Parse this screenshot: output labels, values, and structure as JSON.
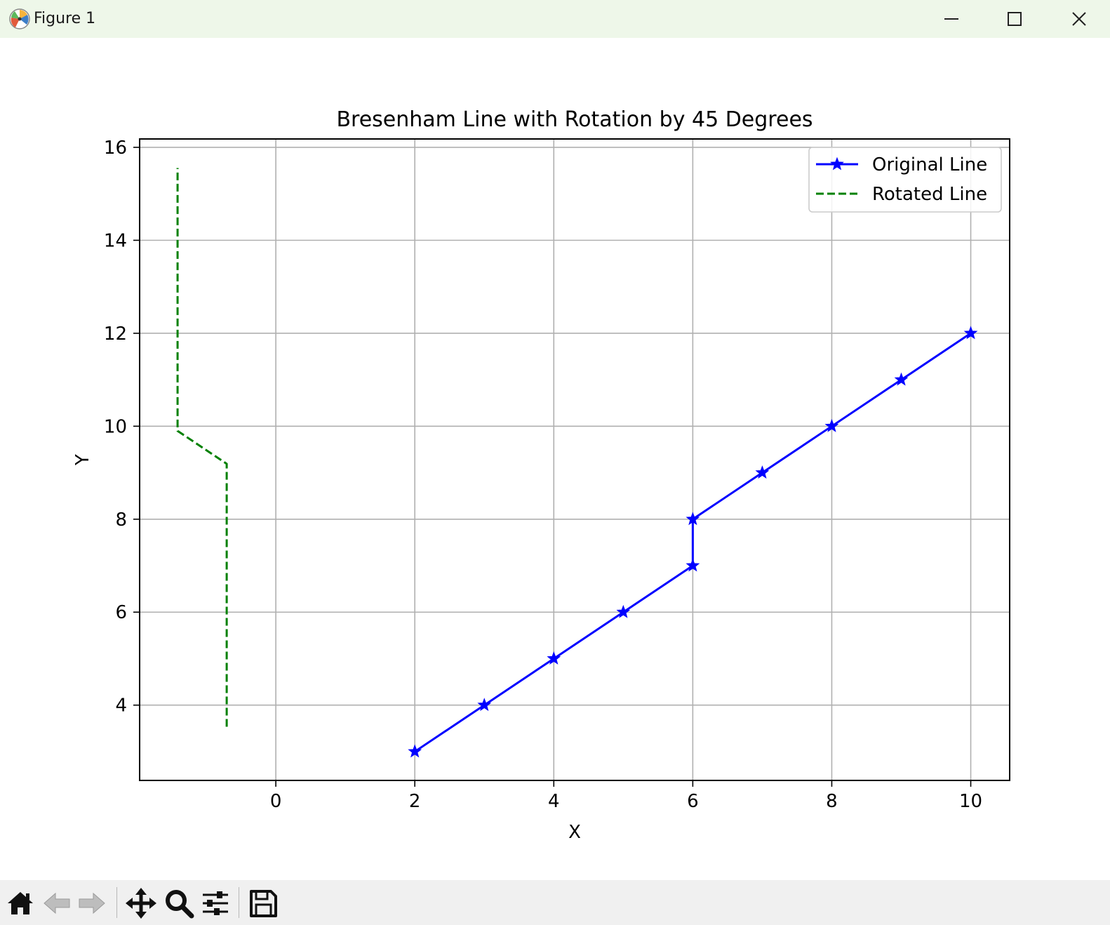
{
  "window": {
    "title": "Figure 1",
    "icons": [
      "matplotlib-logo-icon",
      "minimize-icon",
      "maximize-icon",
      "close-icon"
    ]
  },
  "toolbar": {
    "tools": [
      "home-icon",
      "back-arrow-icon",
      "forward-arrow-icon",
      "pan-move-icon",
      "zoom-magnifier-icon",
      "configure-subplots-icon",
      "save-floppy-icon"
    ]
  },
  "chart_data": {
    "type": "line",
    "title": "Bresenham Line with Rotation by 45 Degrees",
    "xlabel": "X",
    "ylabel": "Y",
    "xlim": [
      -1.96,
      10.56
    ],
    "ylim": [
      2.38,
      16.18
    ],
    "xticks": [
      0,
      2,
      4,
      6,
      8,
      10
    ],
    "yticks": [
      4,
      6,
      8,
      10,
      12,
      14,
      16
    ],
    "grid": true,
    "legend": "upper right",
    "series": [
      {
        "name": "Original Line",
        "color": "#0000ff",
        "style": "solid",
        "marker": "star",
        "x": [
          2,
          3,
          4,
          5,
          6,
          6,
          7,
          8,
          9,
          10
        ],
        "y": [
          3,
          4,
          5,
          6,
          7,
          8,
          9,
          10,
          11,
          12
        ]
      },
      {
        "name": "Rotated Line",
        "color": "#008000",
        "style": "dashed",
        "marker": "none",
        "x": [
          -0.707,
          -0.707,
          -1.414,
          -1.414
        ],
        "y": [
          3.536,
          9.192,
          9.899,
          15.556
        ]
      }
    ]
  }
}
